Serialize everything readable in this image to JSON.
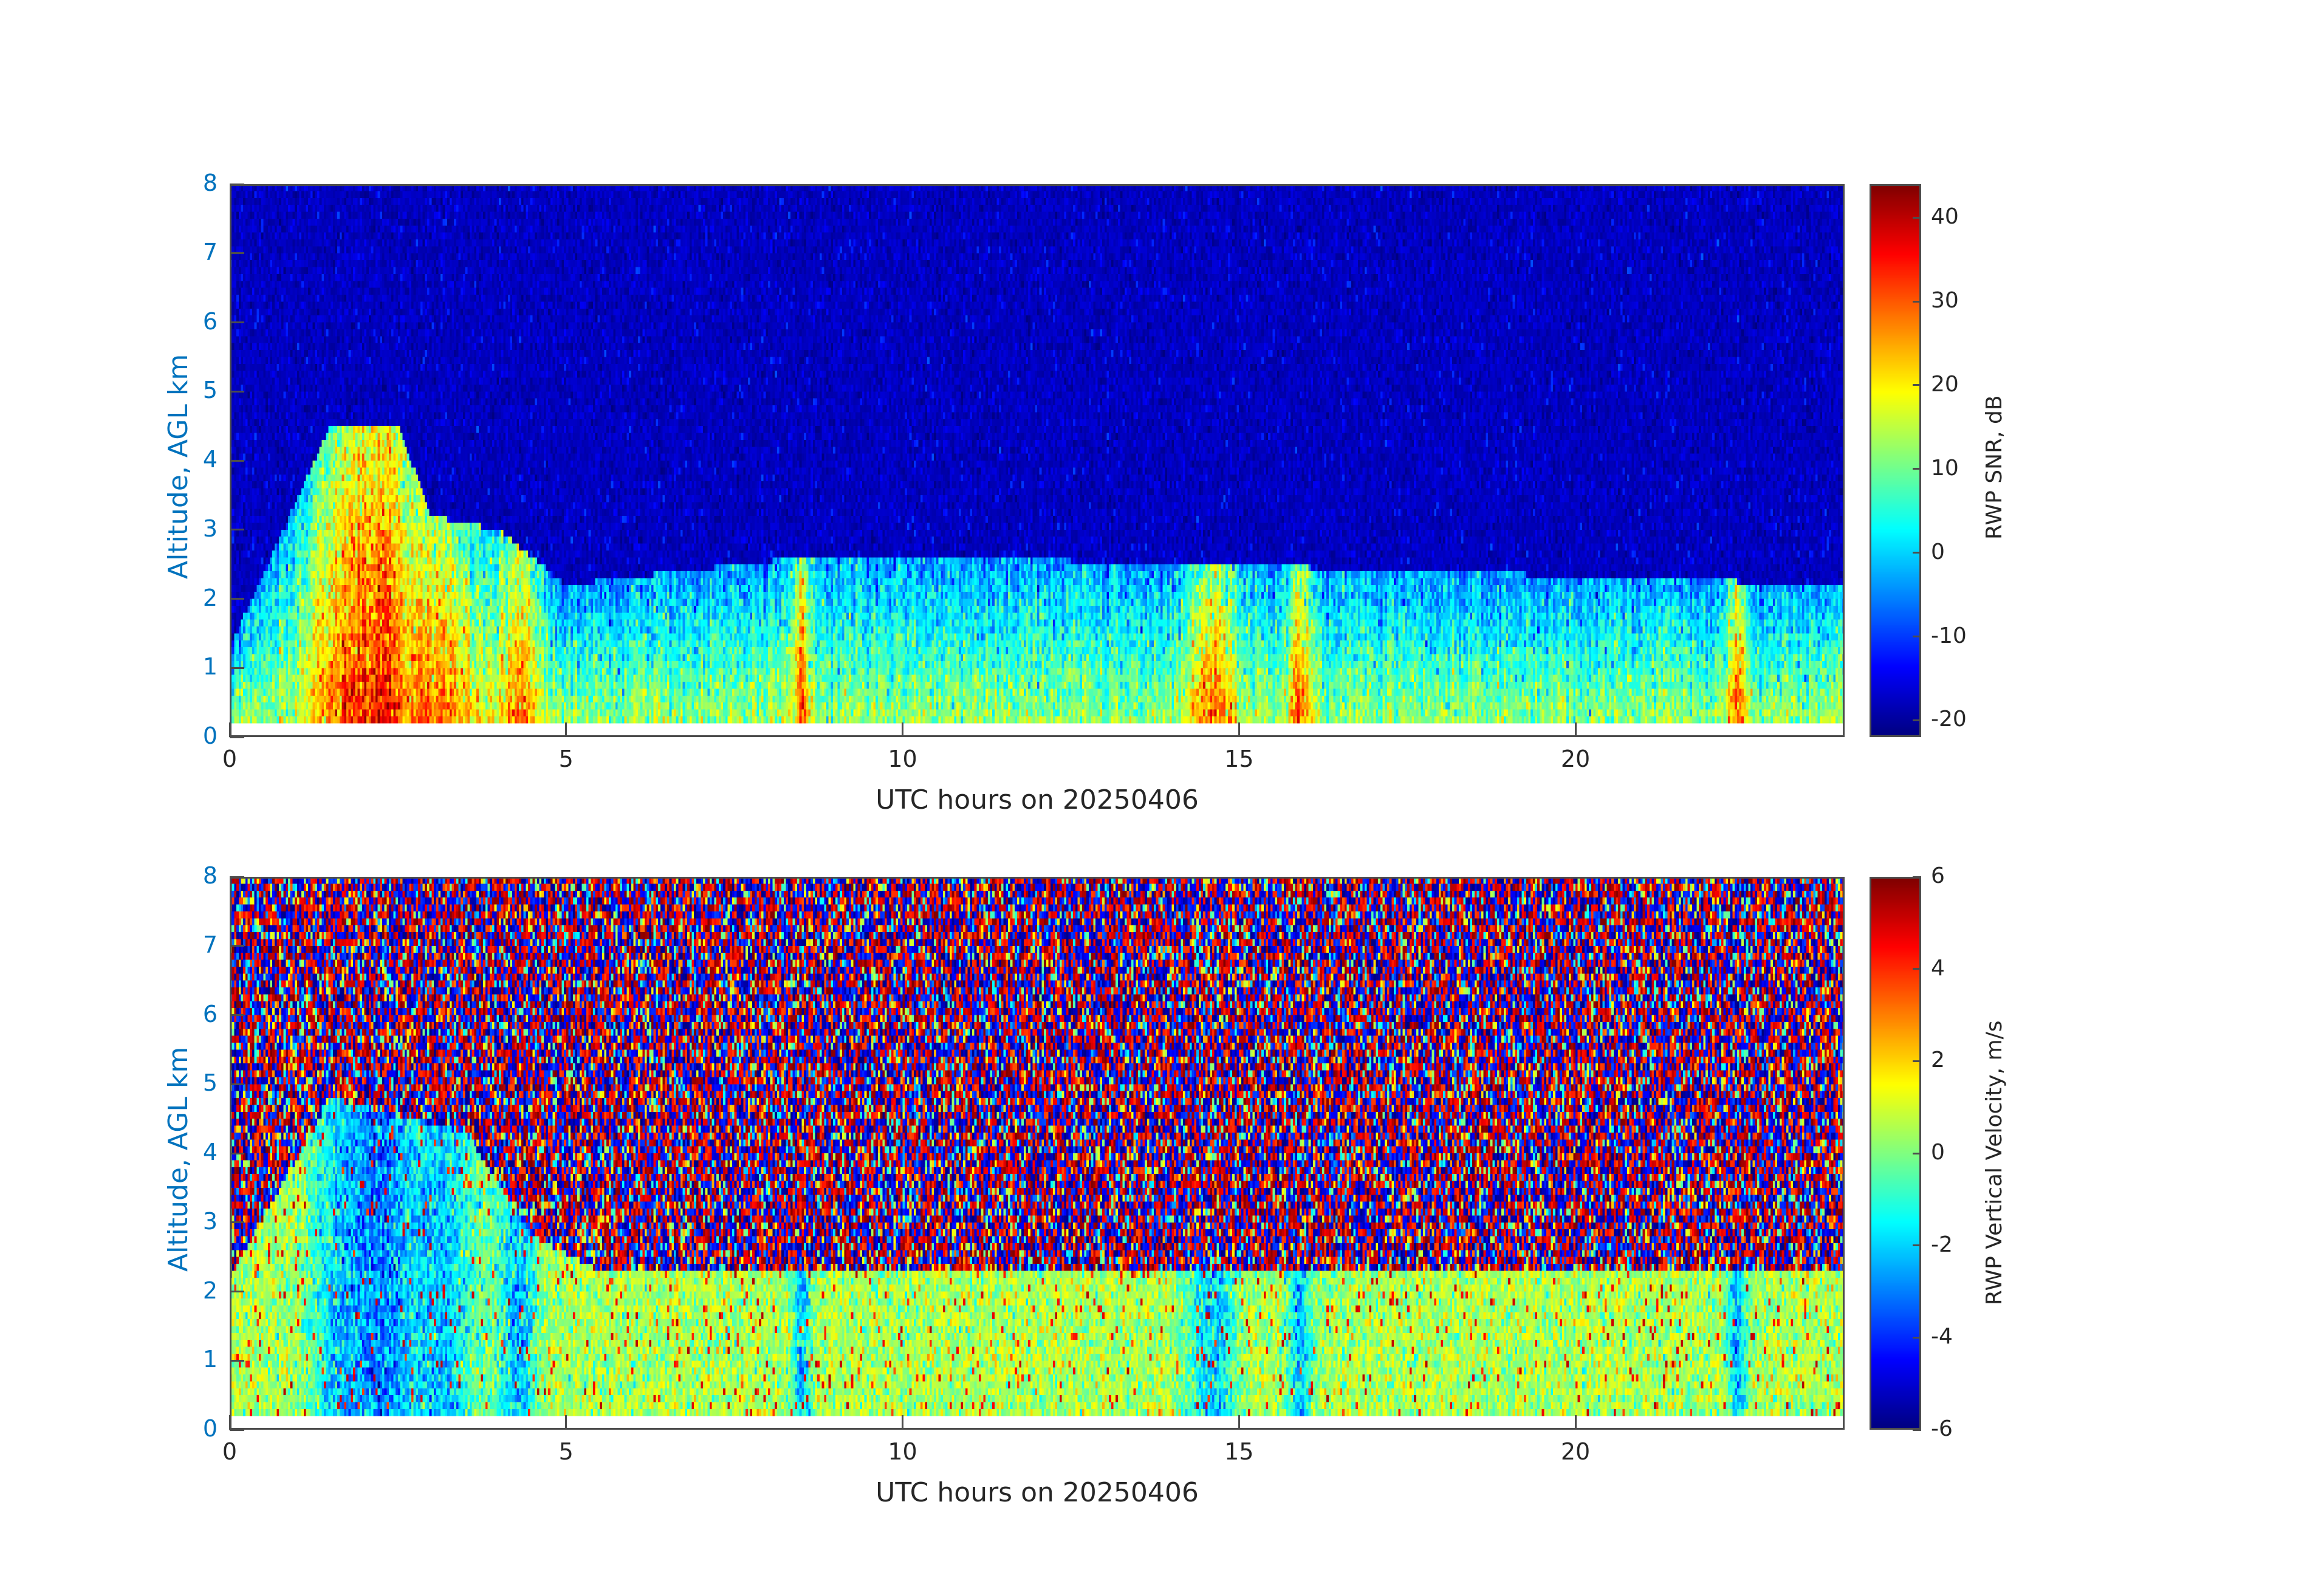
{
  "chart_data": [
    {
      "type": "heatmap",
      "name": "snr",
      "xlabel": "UTC hours on 20250406",
      "ylabel": "Altitude, AGL km",
      "xlim": [
        0,
        24
      ],
      "ylim": [
        0,
        8
      ],
      "xticks": [
        0,
        5,
        10,
        15,
        20
      ],
      "yticks": [
        0,
        1,
        2,
        3,
        4,
        5,
        6,
        7,
        8
      ],
      "colorbar": {
        "label": "RWP SNR, dB",
        "range": [
          -22,
          44
        ],
        "ticks": [
          40,
          30,
          20,
          10,
          0,
          -10,
          -20
        ],
        "colormap": "jet"
      },
      "description_values": {
        "data_bottom_km": 0.2,
        "boundary_layer_top_km": [
          [
            0,
            1.3
          ],
          [
            1.5,
            4.5
          ],
          [
            2.5,
            4.5
          ],
          [
            3.0,
            3.2
          ],
          [
            4.0,
            3.0
          ],
          [
            5.0,
            2.2
          ],
          [
            8.5,
            2.6
          ],
          [
            10.5,
            2.6
          ],
          [
            14.5,
            2.5
          ],
          [
            24,
            2.2
          ]
        ],
        "noise_floor_db": -18,
        "peak_db": 40
      }
    },
    {
      "type": "heatmap",
      "name": "velocity",
      "xlabel": "UTC hours on 20250406",
      "ylabel": "Altitude, AGL km",
      "xlim": [
        0,
        24
      ],
      "ylim": [
        0,
        8
      ],
      "xticks": [
        0,
        5,
        10,
        15,
        20
      ],
      "yticks": [
        0,
        1,
        2,
        3,
        4,
        5,
        6,
        7,
        8
      ],
      "colorbar": {
        "label": "RWP Vertical Velocity, m/s",
        "range": [
          -6,
          6
        ],
        "ticks": [
          6,
          4,
          2,
          0,
          -2,
          -4,
          -6
        ],
        "colormap": "jet"
      },
      "description_values": {
        "data_bottom_km": 0.2,
        "signal_top_km": 2.2,
        "typical_velocity_ms": 0.5,
        "noise_range_ms": [
          -6,
          6
        ]
      }
    }
  ]
}
